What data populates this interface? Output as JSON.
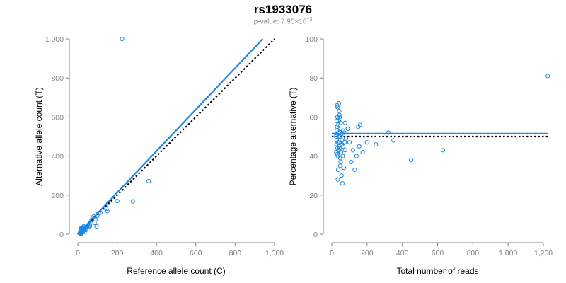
{
  "header": {
    "title": "rs1933076",
    "subtitle_prefix": "p-value: 7.95×10",
    "subtitle_exponent": "−3"
  },
  "colors": {
    "points": "#1e88e5",
    "fit_line": "#1e88e5",
    "reference_line": "#000000",
    "axis": "#7f7f7f"
  },
  "chart_data": [
    {
      "type": "scatter",
      "title": "",
      "xlabel": "Reference allele count (C)",
      "ylabel": "Alternative allele count (T)",
      "xlim": [
        0,
        1000
      ],
      "ylim": [
        0,
        1000
      ],
      "xticks": [
        0,
        200,
        400,
        600,
        800,
        1000
      ],
      "xtick_labels": [
        "0",
        "200",
        "400",
        "600",
        "800",
        "1,000"
      ],
      "yticks": [
        0,
        200,
        400,
        600,
        800,
        1000
      ],
      "ytick_labels": [
        "0",
        "200",
        "400",
        "600",
        "800",
        "1,000"
      ],
      "grid": false,
      "points": [
        [
          10,
          5
        ],
        [
          12,
          8
        ],
        [
          14,
          12
        ],
        [
          15,
          18
        ],
        [
          17,
          10
        ],
        [
          18,
          22
        ],
        [
          20,
          15
        ],
        [
          22,
          28
        ],
        [
          24,
          18
        ],
        [
          25,
          30
        ],
        [
          27,
          22
        ],
        [
          28,
          35
        ],
        [
          30,
          25
        ],
        [
          32,
          20
        ],
        [
          35,
          28
        ],
        [
          38,
          32
        ],
        [
          40,
          36
        ],
        [
          45,
          30
        ],
        [
          48,
          40
        ],
        [
          52,
          46
        ],
        [
          55,
          38
        ],
        [
          60,
          50
        ],
        [
          62,
          42
        ],
        [
          68,
          60
        ],
        [
          70,
          72
        ],
        [
          75,
          85
        ],
        [
          80,
          90
        ],
        [
          85,
          58
        ],
        [
          90,
          75
        ],
        [
          95,
          40
        ],
        [
          100,
          95
        ],
        [
          105,
          108
        ],
        [
          115,
          110
        ],
        [
          145,
          130
        ],
        [
          150,
          118
        ],
        [
          155,
          160
        ],
        [
          200,
          170
        ],
        [
          225,
          1000
        ],
        [
          280,
          168
        ],
        [
          360,
          272
        ],
        [
          12,
          3
        ],
        [
          15,
          5
        ],
        [
          18,
          6
        ],
        [
          20,
          4
        ],
        [
          22,
          10
        ],
        [
          25,
          12
        ],
        [
          14,
          25
        ],
        [
          16,
          30
        ],
        [
          19,
          32
        ],
        [
          21,
          20
        ],
        [
          26,
          15
        ],
        [
          30,
          40
        ],
        [
          34,
          12
        ],
        [
          42,
          22
        ]
      ],
      "lines": [
        {
          "name": "fit",
          "style": "solid",
          "x": [
            0,
            940
          ],
          "y": [
            0,
            1000
          ]
        },
        {
          "name": "reference",
          "style": "dotted",
          "x": [
            0,
            1000
          ],
          "y": [
            0,
            1000
          ]
        }
      ]
    },
    {
      "type": "scatter",
      "title": "",
      "xlabel": "Total number of reads",
      "ylabel": "Percentage alternative (T)",
      "xlim": [
        0,
        1200
      ],
      "ylim": [
        0,
        100
      ],
      "xticks": [
        0,
        200,
        400,
        600,
        800,
        1000,
        1200
      ],
      "xtick_labels": [
        "0",
        "200",
        "400",
        "600",
        "800",
        "1,000",
        "1,200"
      ],
      "yticks": [
        0,
        20,
        40,
        60,
        80,
        100
      ],
      "ytick_labels": [
        "0",
        "20",
        "40",
        "60",
        "80",
        "100"
      ],
      "grid": false,
      "points": [
        [
          25,
          42
        ],
        [
          28,
          48
        ],
        [
          30,
          55
        ],
        [
          32,
          60
        ],
        [
          33,
          65
        ],
        [
          35,
          40
        ],
        [
          36,
          52
        ],
        [
          38,
          45
        ],
        [
          40,
          58
        ],
        [
          42,
          63
        ],
        [
          44,
          44
        ],
        [
          46,
          50
        ],
        [
          48,
          35
        ],
        [
          50,
          57
        ],
        [
          52,
          42
        ],
        [
          55,
          30
        ],
        [
          57,
          48
        ],
        [
          60,
          26
        ],
        [
          62,
          40
        ],
        [
          65,
          45
        ],
        [
          68,
          34
        ],
        [
          70,
          52
        ],
        [
          75,
          43
        ],
        [
          80,
          49
        ],
        [
          25,
          50
        ],
        [
          27,
          46
        ],
        [
          29,
          53
        ],
        [
          31,
          41
        ],
        [
          34,
          47
        ],
        [
          37,
          56
        ],
        [
          39,
          50
        ],
        [
          41,
          43
        ],
        [
          43,
          61
        ],
        [
          45,
          47
        ],
        [
          47,
          39
        ],
        [
          49,
          54
        ],
        [
          30,
          66
        ],
        [
          34,
          28
        ],
        [
          36,
          33
        ],
        [
          40,
          67
        ],
        [
          45,
          60
        ],
        [
          50,
          37
        ],
        [
          28,
          58
        ],
        [
          32,
          44
        ],
        [
          26,
          51
        ],
        [
          53,
          51
        ],
        [
          58,
          46
        ],
        [
          64,
          53
        ],
        [
          72,
          47
        ],
        [
          76,
          57
        ],
        [
          90,
          54
        ],
        [
          100,
          47
        ],
        [
          110,
          37
        ],
        [
          120,
          43
        ],
        [
          130,
          33
        ],
        [
          140,
          40
        ],
        [
          150,
          55
        ],
        [
          155,
          45
        ],
        [
          160,
          56
        ],
        [
          175,
          42
        ],
        [
          200,
          47
        ],
        [
          250,
          46
        ],
        [
          320,
          52
        ],
        [
          350,
          48
        ],
        [
          450,
          38
        ],
        [
          630,
          43
        ],
        [
          1225,
          81
        ]
      ],
      "lines": [
        {
          "name": "fit",
          "style": "solid",
          "x": [
            0,
            1225
          ],
          "y": [
            51.5,
            51.5
          ]
        },
        {
          "name": "reference",
          "style": "dotted",
          "x": [
            0,
            1225
          ],
          "y": [
            50,
            50
          ]
        }
      ]
    }
  ]
}
